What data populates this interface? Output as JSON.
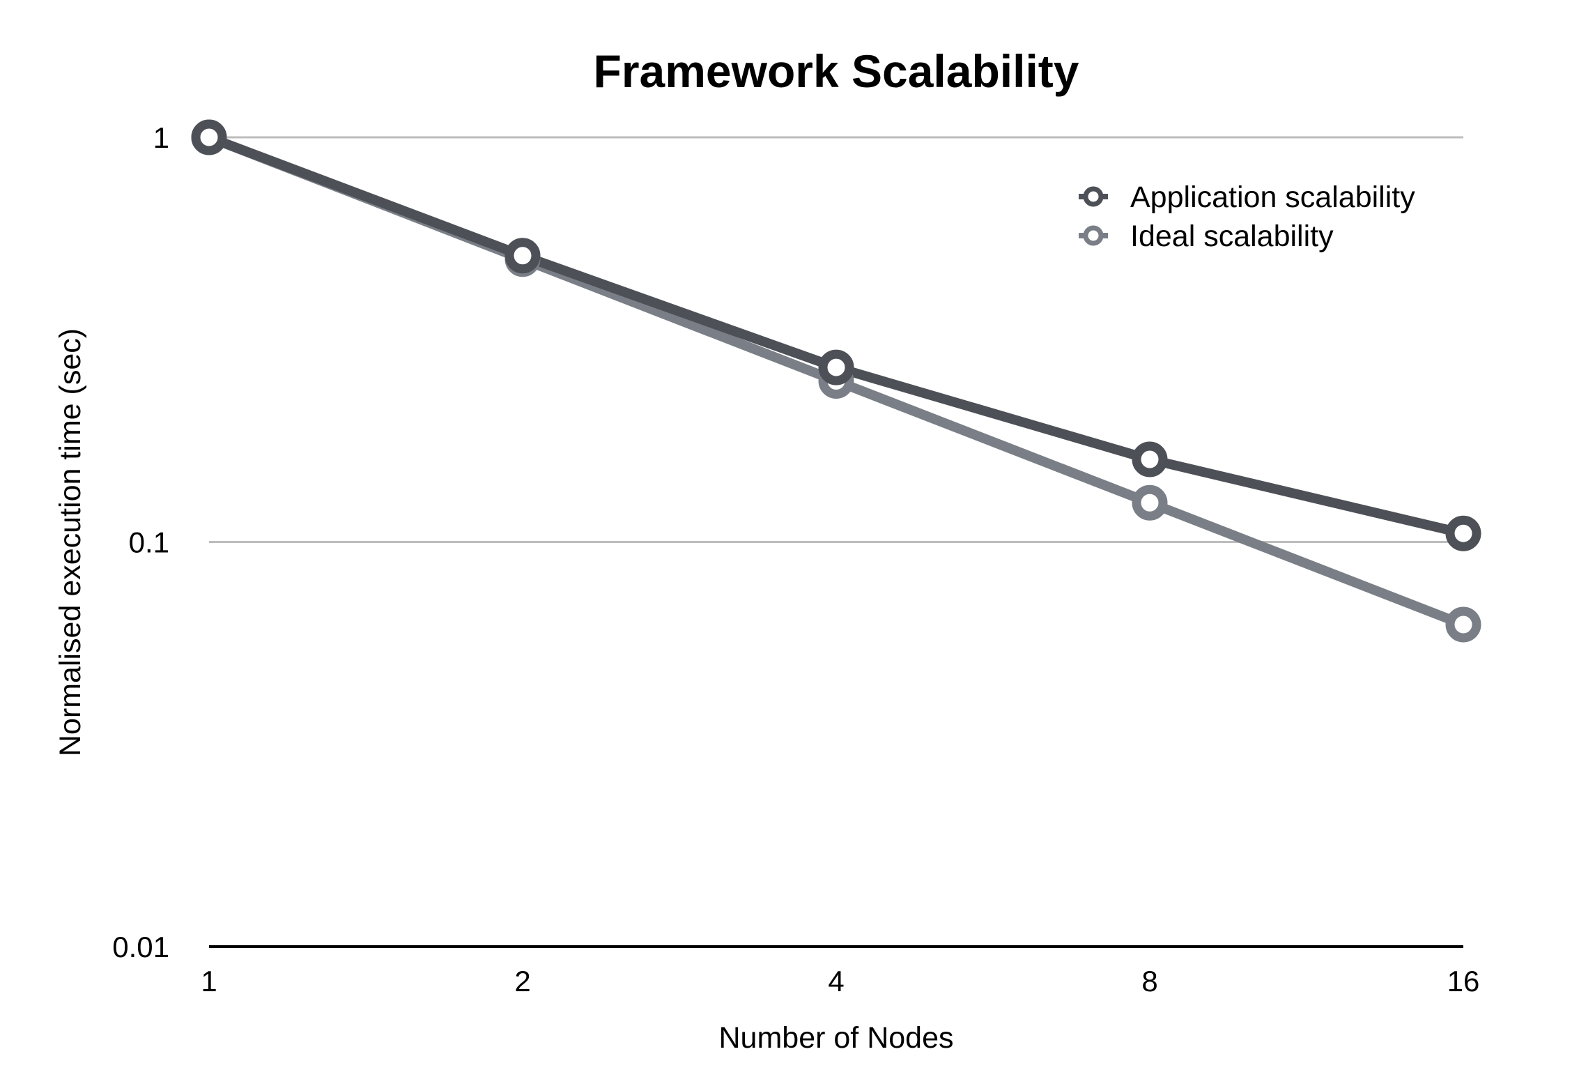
{
  "chart_data": {
    "type": "line",
    "title": "Framework Scalability",
    "xlabel": "Number of Nodes",
    "ylabel": "Normalised execution time (sec)",
    "x": [
      1,
      2,
      4,
      8,
      16
    ],
    "x_tick_labels": [
      "1",
      "2",
      "4",
      "8",
      "16"
    ],
    "x_scale": "log2",
    "y_scale": "log10",
    "ylim": [
      0.01,
      1
    ],
    "y_ticks": [
      1,
      0.1,
      0.01
    ],
    "y_tick_labels": [
      "1",
      "0.1",
      "0.01"
    ],
    "grid": true,
    "legend_position": "top-right",
    "series": [
      {
        "name": "Application scalability",
        "values": [
          1,
          0.51,
          0.27,
          0.16,
          0.105
        ],
        "color": "#4d5157"
      },
      {
        "name": "Ideal scalability",
        "values": [
          1,
          0.5,
          0.25,
          0.125,
          0.0625
        ],
        "color": "#7a7f87"
      }
    ]
  }
}
